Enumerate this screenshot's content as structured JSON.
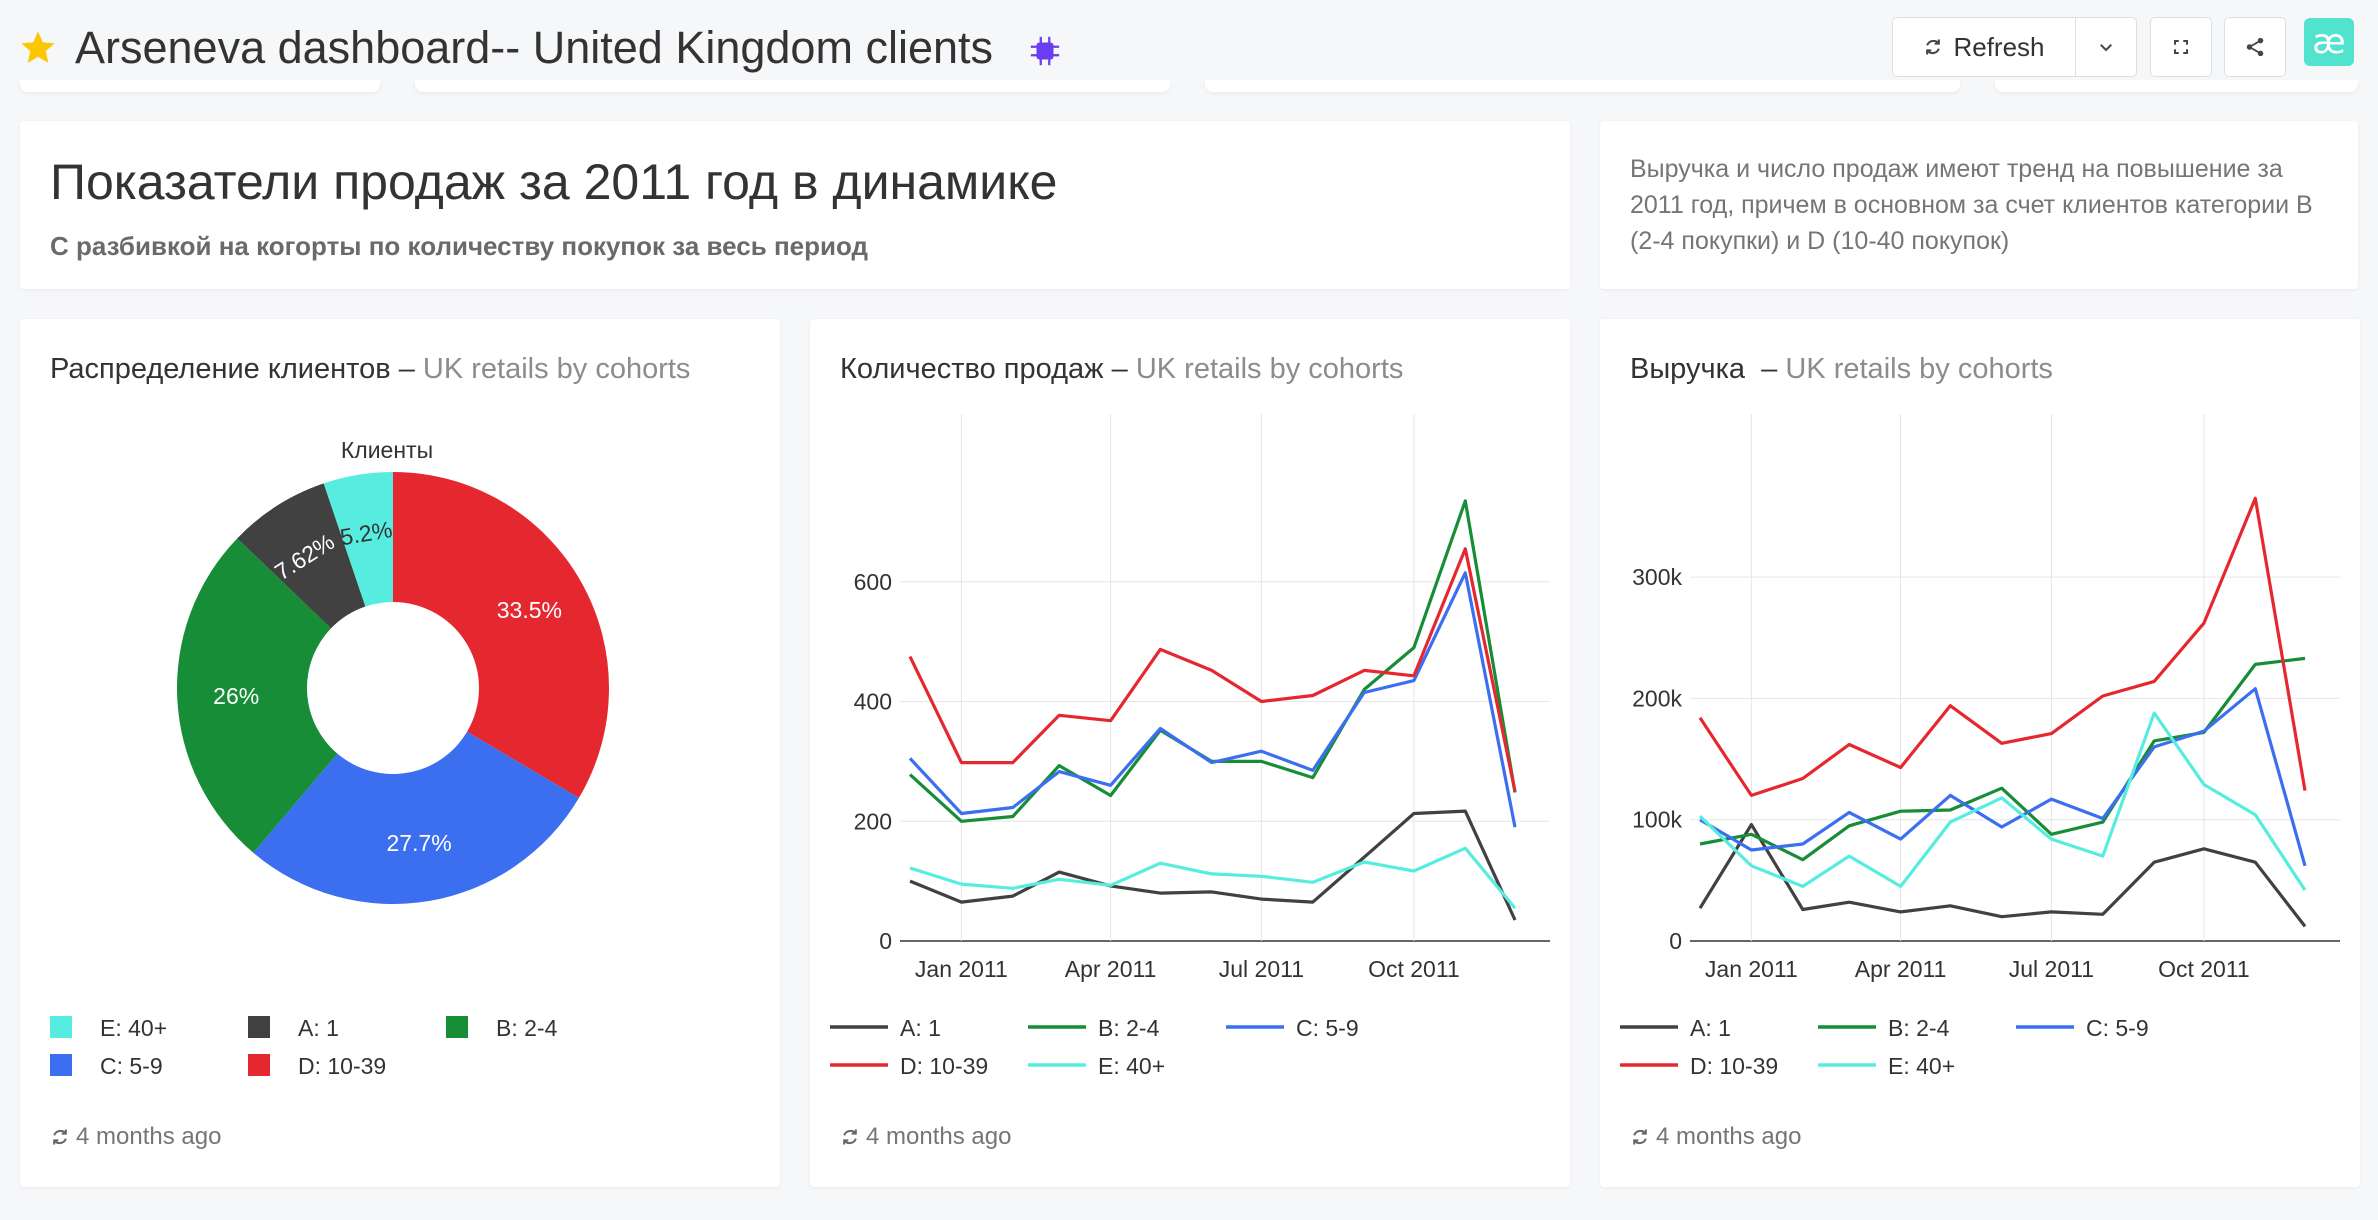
{
  "header": {
    "title": "Arseneva dashboard-- United Kingdom clients",
    "refresh_label": "Refresh",
    "logo_text": "æ"
  },
  "text_card": {
    "title": "Показатели продаж за 2011 год в динамике",
    "subtitle": "С разбивкой на когорты по количеству покупок за весь период"
  },
  "note_card": {
    "text": "Выручка и число продаж имеют тренд на повышение за 2011 год, причем в основном за счет клиентов категории B (2-4 покупки) и D (10-40 покупок)"
  },
  "colors": {
    "A: 1": "#414141",
    "B: 2-4": "#168d36",
    "C: 5-9": "#3b6ff0",
    "D: 10-39": "#e5282f",
    "E: 40+": "#56ede0"
  },
  "charts": {
    "pie": {
      "title": "Распределение клиентов",
      "subtitle": "UK retails by cohorts",
      "updated": "4 months ago"
    },
    "sales": {
      "title": "Количество продаж",
      "subtitle": "UK retails by cohorts",
      "updated": "4 months ago"
    },
    "revenue": {
      "title": "Выручка",
      "subtitle": "UK retails by cohorts",
      "updated": "4 months ago"
    }
  },
  "chart_data": [
    {
      "type": "pie",
      "title": "Клиенты",
      "donut": true,
      "slices": [
        {
          "name": "D: 10-39",
          "value": 33.5,
          "label": "33.5%"
        },
        {
          "name": "C: 5-9",
          "value": 27.7,
          "label": "27.7%"
        },
        {
          "name": "B: 2-4",
          "value": 26,
          "label": "26%"
        },
        {
          "name": "A: 1",
          "value": 7.62,
          "label": "7.62%"
        },
        {
          "name": "E: 40+",
          "value": 5.2,
          "label": "5.2%"
        }
      ],
      "legend": [
        "E: 40+",
        "A: 1",
        "B: 2-4",
        "C: 5-9",
        "D: 10-39"
      ],
      "legend_placement": "bottom"
    },
    {
      "type": "line",
      "x": [
        "2010-12-01",
        "2011-01-01",
        "2011-02-01",
        "2011-03-01",
        "2011-04-01",
        "2011-05-01",
        "2011-06-01",
        "2011-07-01",
        "2011-08-01",
        "2011-09-01",
        "2011-10-01",
        "2011-11-01",
        "2011-12-01"
      ],
      "xticks": [
        "Jan 2011",
        "Apr 2011",
        "Jul 2011",
        "Oct 2011"
      ],
      "yticks": [
        0,
        200,
        400,
        600
      ],
      "ylim": [
        0,
        780
      ],
      "grid": true,
      "series": [
        {
          "name": "A: 1",
          "values": [
            100,
            65,
            75,
            115,
            92,
            80,
            82,
            70,
            65,
            140,
            213,
            217,
            35
          ]
        },
        {
          "name": "B: 2-4",
          "values": [
            278,
            200,
            208,
            293,
            243,
            352,
            300,
            300,
            273,
            420,
            490,
            735,
            248
          ]
        },
        {
          "name": "C: 5-9",
          "values": [
            305,
            213,
            223,
            283,
            260,
            355,
            298,
            317,
            285,
            415,
            435,
            615,
            190
          ]
        },
        {
          "name": "D: 10-39",
          "values": [
            475,
            298,
            298,
            377,
            368,
            487,
            452,
            400,
            410,
            452,
            443,
            655,
            250
          ]
        },
        {
          "name": "E: 40+",
          "values": [
            122,
            95,
            88,
            103,
            93,
            130,
            112,
            108,
            98,
            132,
            117,
            155,
            55
          ]
        }
      ],
      "legend": [
        "A: 1",
        "B: 2-4",
        "C: 5-9",
        "D: 10-39",
        "E: 40+"
      ],
      "legend_placement": "bottom"
    },
    {
      "type": "line",
      "x": [
        "2010-12-01",
        "2011-01-01",
        "2011-02-01",
        "2011-03-01",
        "2011-04-01",
        "2011-05-01",
        "2011-06-01",
        "2011-07-01",
        "2011-08-01",
        "2011-09-01",
        "2011-10-01",
        "2011-11-01",
        "2011-12-01"
      ],
      "xticks": [
        "Jan 2011",
        "Apr 2011",
        "Jul 2011",
        "Oct 2011"
      ],
      "yticks": [
        "0",
        "100k",
        "200k",
        "300k"
      ],
      "ytick_values": [
        0,
        100000,
        200000,
        300000
      ],
      "ylim": [
        0,
        385000
      ],
      "grid": true,
      "series": [
        {
          "name": "A: 1",
          "values": [
            27000,
            96000,
            26000,
            32000,
            24000,
            29000,
            20000,
            24000,
            22000,
            65000,
            76000,
            65000,
            12000
          ]
        },
        {
          "name": "B: 2-4",
          "values": [
            80000,
            88000,
            67000,
            95000,
            107000,
            108000,
            126000,
            88000,
            98000,
            165000,
            172000,
            228000,
            233000
          ]
        },
        {
          "name": "C: 5-9",
          "values": [
            100000,
            75000,
            80000,
            106000,
            84000,
            120000,
            94000,
            117000,
            101000,
            160000,
            173000,
            208000,
            62000
          ]
        },
        {
          "name": "D: 10-39",
          "values": [
            184000,
            120000,
            134000,
            162000,
            143000,
            194000,
            163000,
            171000,
            202000,
            214000,
            262000,
            365000,
            124000
          ]
        },
        {
          "name": "E: 40+",
          "values": [
            103000,
            62000,
            45000,
            70000,
            45000,
            98000,
            118000,
            84000,
            70000,
            188000,
            129000,
            104000,
            42000
          ]
        }
      ],
      "legend": [
        "A: 1",
        "B: 2-4",
        "C: 5-9",
        "D: 10-39",
        "E: 40+"
      ],
      "legend_placement": "bottom"
    }
  ]
}
